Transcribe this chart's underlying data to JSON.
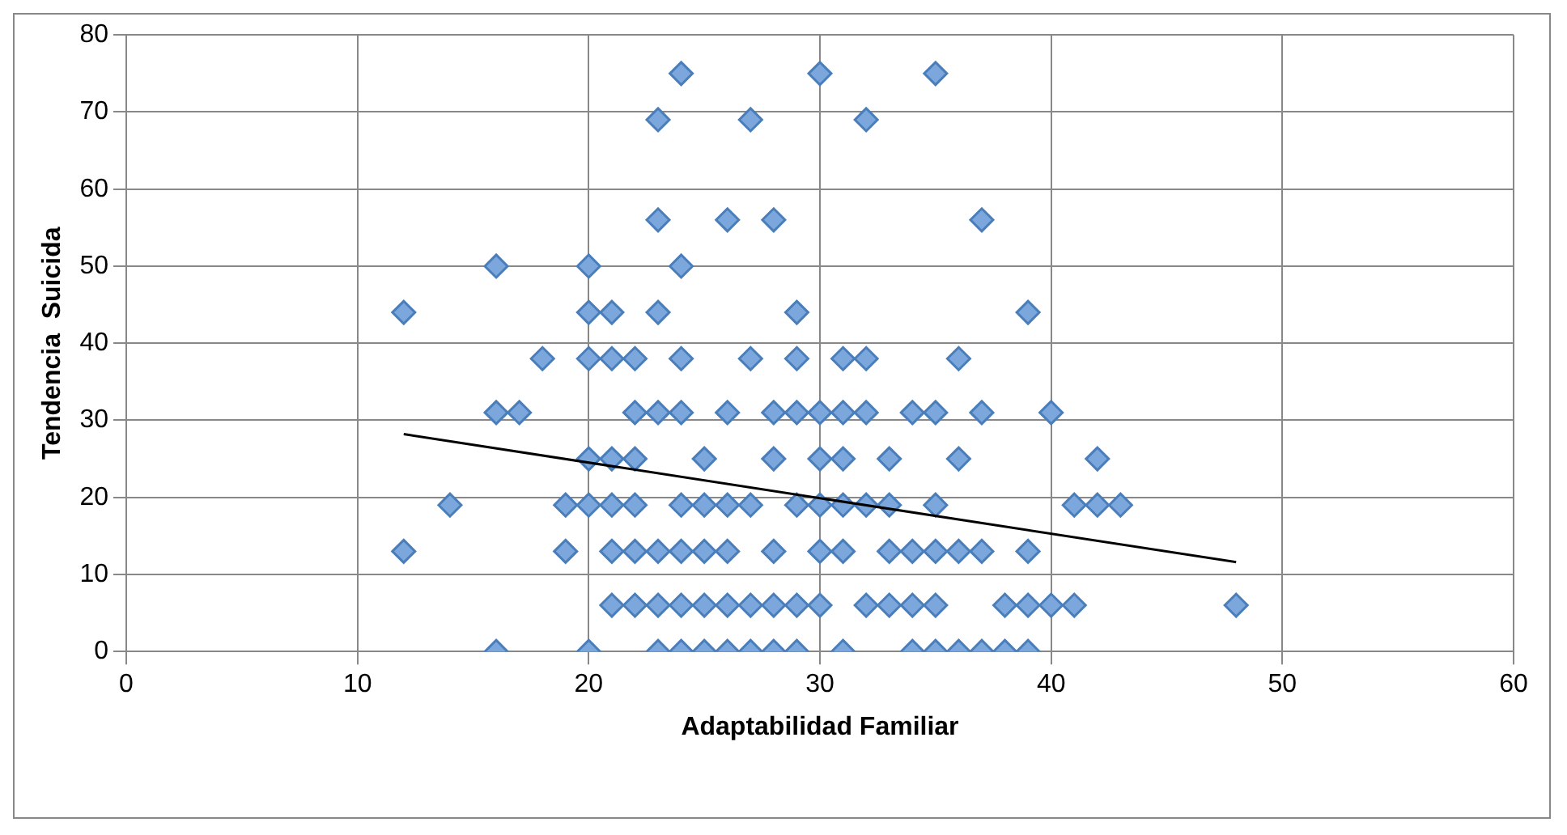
{
  "chart_data": {
    "type": "scatter",
    "xlabel": "Adaptabilidad Familiar",
    "ylabel": "Tendencia  Suicida",
    "xlim": [
      0,
      60
    ],
    "xticks": [
      0,
      10,
      20,
      30,
      40,
      50,
      60
    ],
    "ylim": [
      0,
      80
    ],
    "yticks": [
      0,
      10,
      20,
      30,
      40,
      50,
      60,
      70,
      80
    ],
    "grid": true,
    "legend": false,
    "marker": "diamond",
    "series": [
      {
        "color": "#7ca7dc",
        "x": [
          24,
          30,
          35,
          23,
          27,
          32,
          23,
          26,
          28,
          37,
          16,
          20,
          24,
          12,
          20,
          21,
          23,
          29,
          39,
          18,
          20,
          21,
          22,
          24,
          27,
          29,
          31,
          32,
          36,
          16,
          17,
          22,
          23,
          24,
          26,
          28,
          29,
          30,
          31,
          32,
          34,
          35,
          37,
          40,
          20,
          21,
          22,
          25,
          28,
          30,
          31,
          33,
          36,
          42,
          14,
          19,
          20,
          21,
          22,
          24,
          25,
          26,
          27,
          29,
          30,
          31,
          32,
          33,
          35,
          41,
          42,
          43,
          12,
          19,
          21,
          22,
          23,
          24,
          25,
          26,
          28,
          30,
          31,
          33,
          34,
          35,
          36,
          37,
          39,
          21,
          22,
          23,
          24,
          25,
          26,
          27,
          28,
          29,
          30,
          32,
          33,
          34,
          35,
          38,
          39,
          40,
          41,
          48,
          16,
          20,
          23,
          24,
          25,
          26,
          27,
          28,
          29,
          31,
          34,
          35,
          36,
          37,
          38,
          39
        ],
        "values": [
          75,
          75,
          75,
          69,
          69,
          69,
          56,
          56,
          56,
          56,
          50,
          50,
          50,
          44,
          44,
          44,
          44,
          44,
          44,
          38,
          38,
          38,
          38,
          38,
          38,
          38,
          38,
          38,
          38,
          31,
          31,
          31,
          31,
          31,
          31,
          31,
          31,
          31,
          31,
          31,
          31,
          31,
          31,
          31,
          25,
          25,
          25,
          25,
          25,
          25,
          25,
          25,
          25,
          25,
          19,
          19,
          19,
          19,
          19,
          19,
          19,
          19,
          19,
          19,
          19,
          19,
          19,
          19,
          19,
          19,
          19,
          19,
          13,
          13,
          13,
          13,
          13,
          13,
          13,
          13,
          13,
          13,
          13,
          13,
          13,
          13,
          13,
          13,
          13,
          6,
          6,
          6,
          6,
          6,
          6,
          6,
          6,
          6,
          6,
          6,
          6,
          6,
          6,
          6,
          6,
          6,
          6,
          6,
          0,
          0,
          0,
          0,
          0,
          0,
          0,
          0,
          0,
          0,
          0,
          0,
          0,
          0,
          0,
          0
        ]
      },
      {
        "type": "line",
        "color": "#000000",
        "marker": "none",
        "x": [
          12,
          48
        ],
        "values": [
          28.2,
          11.6
        ]
      }
    ]
  }
}
